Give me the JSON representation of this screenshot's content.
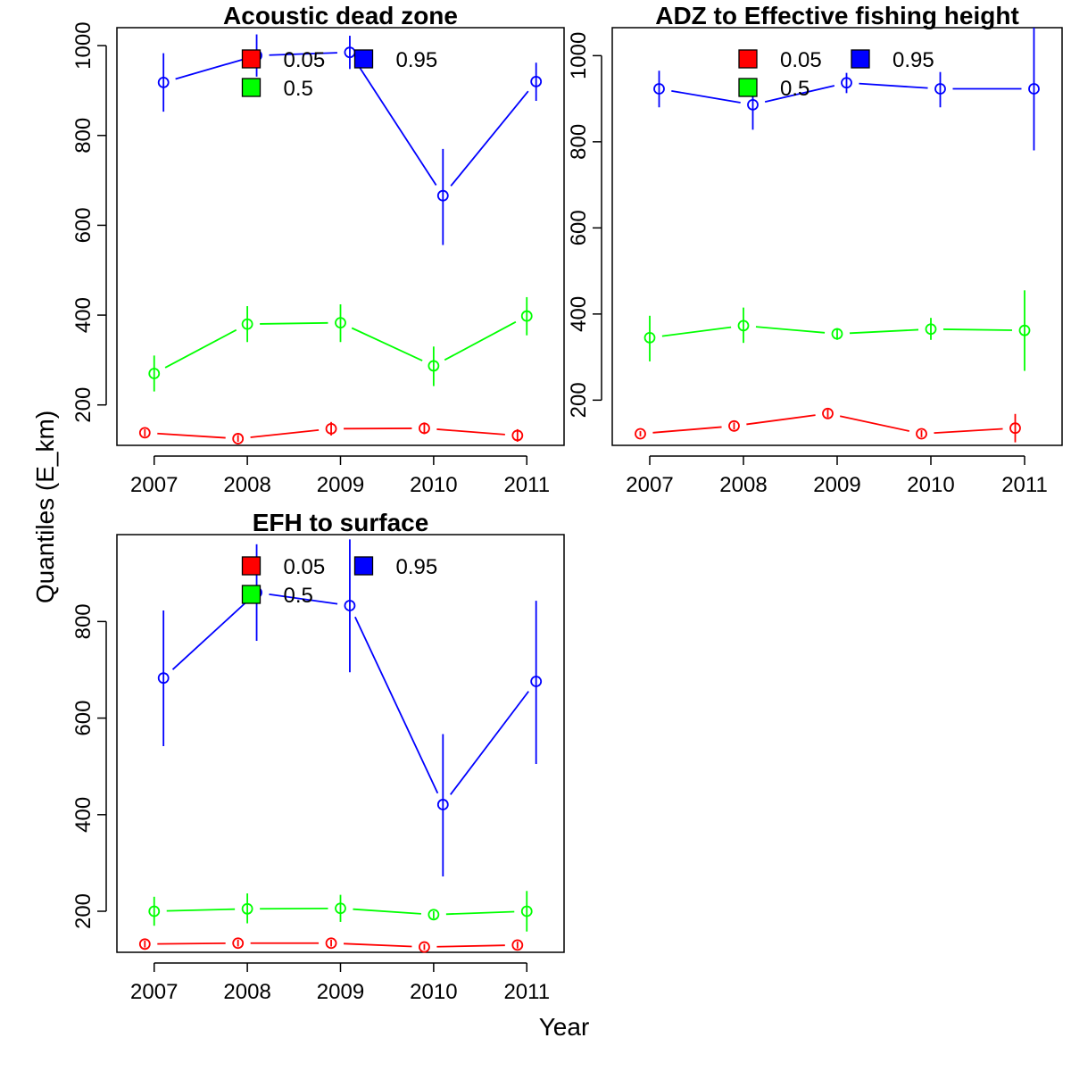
{
  "xlabel": "Year",
  "ylabel": "Quantiles (E_km)",
  "legend": [
    {
      "label": "0.05",
      "color": "#ff0000"
    },
    {
      "label": "0.95",
      "color": "#0000ff"
    },
    {
      "label": "0.5",
      "color": "#00ff00"
    }
  ],
  "chart_data": [
    {
      "type": "line",
      "title": "Acoustic dead zone",
      "x": [
        2007,
        2008,
        2009,
        2010,
        2011
      ],
      "x_tick_labels": [
        "2007",
        "2008",
        "2009",
        "2010",
        "2011"
      ],
      "ylim": [
        110,
        1040
      ],
      "y_ticks": [
        200,
        400,
        600,
        800,
        1000
      ],
      "y_tick_labels": [
        "200",
        "400",
        "600",
        "800",
        "1000"
      ],
      "legend_position": "top-center",
      "series": [
        {
          "name": "0.05",
          "color": "#ff0000",
          "x_offset": [
            -0.1,
            -0.1,
            -0.1,
            -0.1,
            -0.1
          ],
          "values": [
            138,
            125,
            147,
            148,
            132
          ],
          "lower": [
            130,
            118,
            132,
            135,
            118
          ],
          "upper": [
            146,
            133,
            162,
            161,
            146
          ]
        },
        {
          "name": "0.5",
          "color": "#00ff00",
          "x_offset": [
            0,
            0,
            0,
            0,
            0
          ],
          "values": [
            270,
            380,
            383,
            287,
            398
          ],
          "lower": [
            230,
            340,
            340,
            242,
            355
          ],
          "upper": [
            310,
            420,
            424,
            330,
            440
          ]
        },
        {
          "name": "0.95",
          "color": "#0000ff",
          "x_offset": [
            0.1,
            0.1,
            0.1,
            0.1,
            0.1
          ],
          "values": [
            918,
            978,
            985,
            666,
            920
          ],
          "lower": [
            853,
            931,
            948,
            556,
            877
          ],
          "upper": [
            983,
            1025,
            1022,
            770,
            962
          ]
        }
      ]
    },
    {
      "type": "line",
      "title": "ADZ to Effective fishing height",
      "x": [
        2007,
        2008,
        2009,
        2010,
        2011
      ],
      "x_tick_labels": [
        "2007",
        "2008",
        "2009",
        "2010",
        "2011"
      ],
      "ylim": [
        95,
        1065
      ],
      "y_ticks": [
        200,
        400,
        600,
        800,
        1000
      ],
      "y_tick_labels": [
        "200",
        "400",
        "600",
        "800",
        "1000"
      ],
      "legend_position": "top-center",
      "series": [
        {
          "name": "0.05",
          "color": "#ff0000",
          "x_offset": [
            -0.1,
            -0.1,
            -0.1,
            -0.1,
            -0.1
          ],
          "values": [
            122,
            140,
            169,
            122,
            135
          ],
          "lower": [
            116,
            132,
            160,
            114,
            102
          ],
          "upper": [
            128,
            148,
            178,
            130,
            168
          ]
        },
        {
          "name": "0.5",
          "color": "#00ff00",
          "x_offset": [
            0,
            0,
            0,
            0,
            0
          ],
          "values": [
            345,
            373,
            354,
            365,
            362
          ],
          "lower": [
            290,
            333,
            340,
            340,
            268
          ],
          "upper": [
            396,
            415,
            367,
            391,
            455
          ]
        },
        {
          "name": "0.95",
          "color": "#0000ff",
          "x_offset": [
            0.1,
            0.1,
            0.1,
            0.1,
            0.1
          ],
          "values": [
            923,
            886,
            937,
            923,
            923
          ],
          "lower": [
            880,
            828,
            913,
            880,
            780
          ],
          "upper": [
            965,
            940,
            960,
            962,
            1065
          ]
        }
      ]
    },
    {
      "type": "line",
      "title": "EFH to surface",
      "x": [
        2007,
        2008,
        2009,
        2010,
        2011
      ],
      "x_tick_labels": [
        "2007",
        "2008",
        "2009",
        "2010",
        "2011"
      ],
      "ylim": [
        115,
        980
      ],
      "y_ticks": [
        200,
        400,
        600,
        800
      ],
      "y_tick_labels": [
        "200",
        "400",
        "600",
        "800"
      ],
      "legend_position": "top-center",
      "series": [
        {
          "name": "0.05",
          "color": "#ff0000",
          "x_offset": [
            -0.1,
            -0.1,
            -0.1,
            -0.1,
            -0.1
          ],
          "values": [
            132,
            134,
            134,
            126,
            130
          ],
          "lower": [
            125,
            127,
            127,
            120,
            123
          ],
          "upper": [
            139,
            141,
            141,
            132,
            137
          ]
        },
        {
          "name": "0.5",
          "color": "#00ff00",
          "x_offset": [
            0,
            0,
            0,
            0,
            0
          ],
          "values": [
            200,
            205,
            206,
            193,
            200
          ],
          "lower": [
            170,
            175,
            178,
            185,
            158
          ],
          "upper": [
            230,
            237,
            234,
            200,
            242
          ]
        },
        {
          "name": "0.95",
          "color": "#0000ff",
          "x_offset": [
            0.1,
            0.1,
            0.1,
            0.1,
            0.1
          ],
          "values": [
            683,
            860,
            833,
            421,
            676
          ],
          "lower": [
            542,
            760,
            695,
            272,
            505
          ],
          "upper": [
            823,
            960,
            970,
            567,
            843
          ]
        }
      ]
    }
  ]
}
